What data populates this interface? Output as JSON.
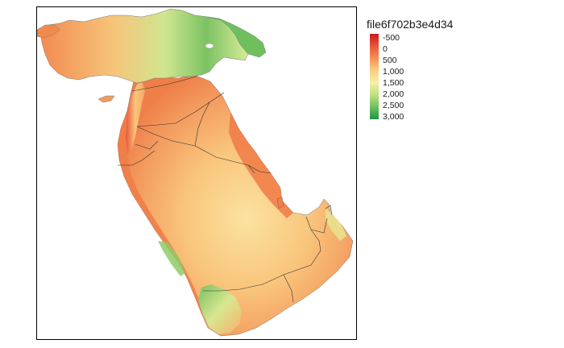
{
  "map": {
    "title": "",
    "frame": true
  },
  "legend": {
    "title": "file6f702b3e4d34",
    "labels": [
      "-500",
      "0",
      "500",
      "1,000",
      "1,500",
      "2,000",
      "2,500",
      "3,000"
    ],
    "colors": [
      "#c81a1e",
      "#e8563a",
      "#f58e55",
      "#fbcf83",
      "#f4f0a8",
      "#bfe180",
      "#6fbf5e",
      "#1a9641"
    ]
  },
  "colors": {
    "lowland": "#f2804c",
    "midland": "#fbc57a",
    "upland": "#d9ec97",
    "highland": "#5fb55a",
    "border": "#333333"
  }
}
